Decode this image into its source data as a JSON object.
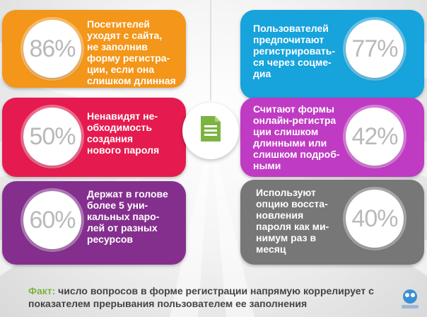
{
  "colors": {
    "orange": "#f39619",
    "red": "#e51b4f",
    "purple": "#842f8e",
    "blue": "#17a3db",
    "violet": "#c03bc3",
    "gray": "#777777",
    "fact_label": "#7cb442"
  },
  "cards": [
    {
      "side": "left",
      "color": "orange",
      "percent": "86%",
      "text": "Посетителей\nуходят с сайта,\nне заполнив\nформу регистра-\nции, если она\nслишком длинная"
    },
    {
      "side": "left",
      "color": "red",
      "percent": "50%",
      "text": "Ненавидят не-\nобходимость\nсоздания\nнового пароля"
    },
    {
      "side": "left",
      "color": "purple",
      "percent": "60%",
      "text": "Держат в голове\nболее 5 уни-\nкальных паро-\nлей от разных\nресурсов"
    },
    {
      "side": "right",
      "color": "blue",
      "percent": "77%",
      "text": "Пользователей\nпредпочитают\nрегистрировать-\nся через соцме-\nдиа"
    },
    {
      "side": "right",
      "color": "violet",
      "percent": "42%",
      "text": "Считают формы\nонлайн-регистра\nции слишком\nдлинными или\nслишком подроб-\nными"
    },
    {
      "side": "right",
      "color": "gray",
      "percent": "40%",
      "text": "Используют\nопцию восста-\nновления\nпароля как ми-\nнимум раз в\nмесяц"
    }
  ],
  "center_icon": "form-document-icon",
  "fact": {
    "label": "Факт:",
    "text": " число вопросов в форме регистрации напрямую коррелирует с показателем прерывания  пользователем ее заполнения"
  },
  "logo_icon": "site-logo-icon"
}
